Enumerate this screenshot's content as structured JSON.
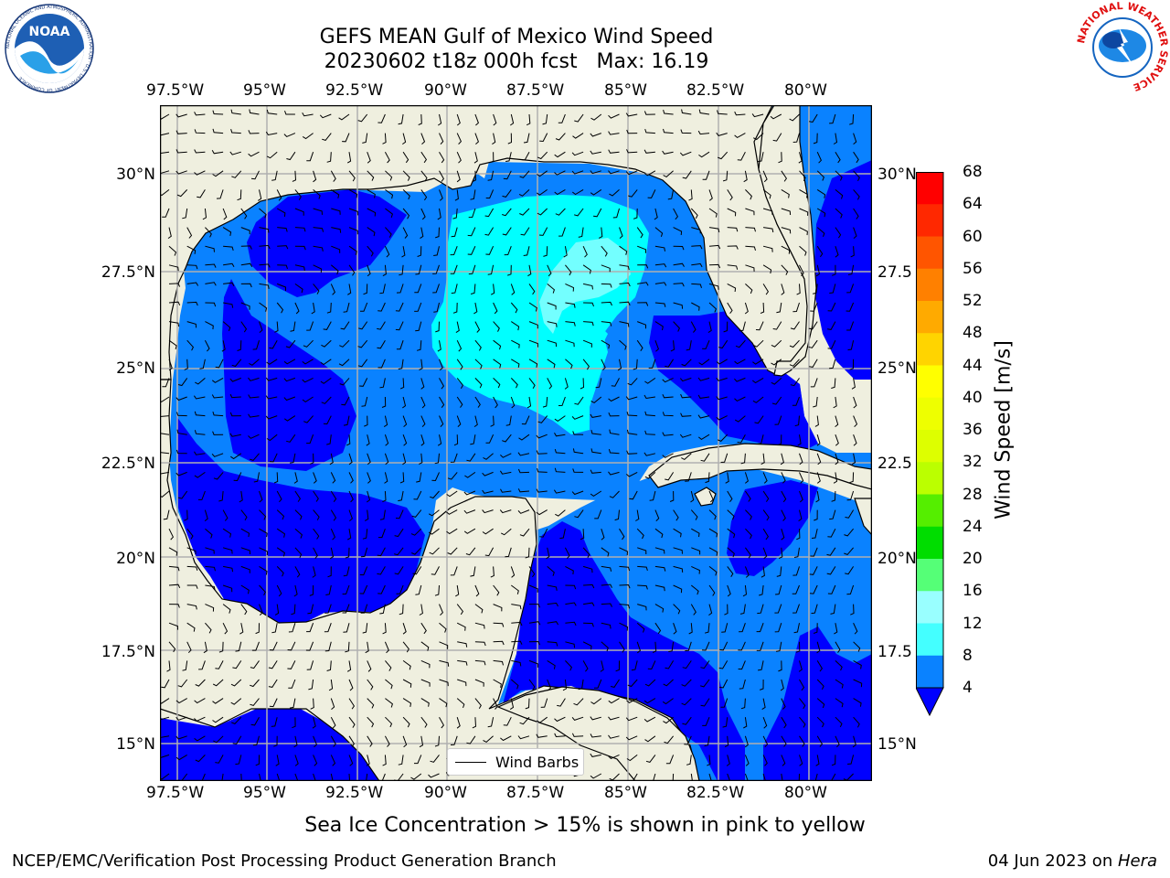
{
  "header": {
    "title_line1": "GEFS MEAN Gulf of Mexico Wind Speed",
    "title_line2": "20230602 t18z 000h fcst   Max: 16.19"
  },
  "logos": {
    "left_logo_text": "NOAA",
    "left_logo_ring": "NATIONAL OCEANIC AND ATMOSPHERIC ADMINISTRATION · U.S. DEPARTMENT OF COMMERCE",
    "right_logo_ring": "NATIONAL WEATHER SERVICE"
  },
  "map": {
    "lon_labels": [
      "97.5°W",
      "95°W",
      "92.5°W",
      "90°W",
      "87.5°W",
      "85°W",
      "82.5°W",
      "80°W"
    ],
    "lat_labels_left": [
      "30°N",
      "27.5°N",
      "25°N",
      "22.5°N",
      "20°N",
      "17.5°N",
      "15°N"
    ],
    "lat_labels_right": [
      "30°N",
      "27.5",
      "25°N",
      "22.5",
      "20°N",
      "17.5",
      "15°N"
    ],
    "legend_label": "Wind Barbs",
    "colors": {
      "land": "#efefdf",
      "c4_8": "#0a82ff",
      "c0_4": "#0000ff",
      "c8_12": "#00ffff",
      "c12_16": "#73ffff"
    }
  },
  "colorbar": {
    "label": "Wind Speed [m/s]",
    "ticks": [
      "68",
      "64",
      "60",
      "56",
      "52",
      "48",
      "44",
      "40",
      "36",
      "32",
      "28",
      "24",
      "20",
      "16",
      "12",
      "8",
      "4"
    ],
    "colors": [
      "#ff0000",
      "#ff2800",
      "#ff5500",
      "#ff8000",
      "#ffaa00",
      "#ffd400",
      "#ffff00",
      "#eeff00",
      "#ddff00",
      "#bbff00",
      "#55ee00",
      "#00dd00",
      "#55ff77",
      "#99ffff",
      "#44ffff",
      "#00ffff",
      "#0a82ff"
    ],
    "extend_color": "#0000ff"
  },
  "caption": "Sea Ice Concentration > 15% is shown in pink to yellow",
  "footer": {
    "left": "NCEP/EMC/Verification Post Processing Product Generation Branch",
    "right_date": "04 Jun 2023 on ",
    "right_host": "Hera"
  }
}
